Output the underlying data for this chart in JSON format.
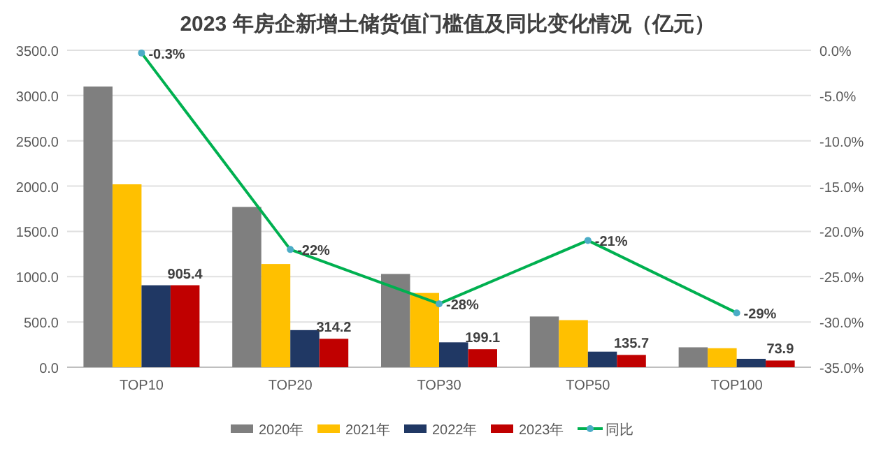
{
  "chart_data": {
    "type": "bar",
    "title": "2023 年房企新增土储货值门槛值及同比变化情况（亿元）",
    "categories": [
      "TOP10",
      "TOP20",
      "TOP30",
      "TOP50",
      "TOP100"
    ],
    "series": [
      {
        "name": "2020年",
        "color": "#7f7f7f",
        "values": [
          3100,
          1770,
          1030,
          560,
          220
        ]
      },
      {
        "name": "2021年",
        "color": "#ffc000",
        "values": [
          2020,
          1140,
          820,
          520,
          210
        ]
      },
      {
        "name": "2022年",
        "color": "#203864",
        "values": [
          905,
          410,
          275,
          172,
          93
        ]
      },
      {
        "name": "2023年",
        "color": "#c00000",
        "values": [
          905.4,
          314.2,
          199.1,
          135.7,
          73.9
        ],
        "value_labels": [
          "905.4",
          "314.2",
          "199.1",
          "135.7",
          "73.9"
        ]
      },
      {
        "name": "同比",
        "color": "#00b050",
        "type": "line",
        "axis": "y2",
        "marker": "circle",
        "values": [
          -0.3,
          -22,
          -28,
          -21,
          -29
        ],
        "value_labels": [
          "-0.3%",
          "-22%",
          "-28%",
          "-21%",
          "-29%"
        ]
      }
    ],
    "ylim": [
      0,
      3500
    ],
    "yticks": [
      {
        "value": 0,
        "label": "0.0"
      },
      {
        "value": 500,
        "label": "500.0"
      },
      {
        "value": 1000,
        "label": "1000.0"
      },
      {
        "value": 1500,
        "label": "1500.0"
      },
      {
        "value": 2000,
        "label": "2000.0"
      },
      {
        "value": 2500,
        "label": "2500.0"
      },
      {
        "value": 3000,
        "label": "3000.0"
      },
      {
        "value": 3500,
        "label": "3500.0"
      }
    ],
    "y2lim": [
      -35,
      0
    ],
    "y2ticks": [
      {
        "value": 0,
        "label": "0.0%"
      },
      {
        "value": -5,
        "label": "-5.0%"
      },
      {
        "value": -10,
        "label": "-10.0%"
      },
      {
        "value": -15,
        "label": "-15.0%"
      },
      {
        "value": -20,
        "label": "-20.0%"
      },
      {
        "value": -25,
        "label": "-25.0%"
      },
      {
        "value": -30,
        "label": "-30.0%"
      },
      {
        "value": -35,
        "label": "-35.0%"
      }
    ],
    "grid": "y",
    "legend": "bottom"
  }
}
